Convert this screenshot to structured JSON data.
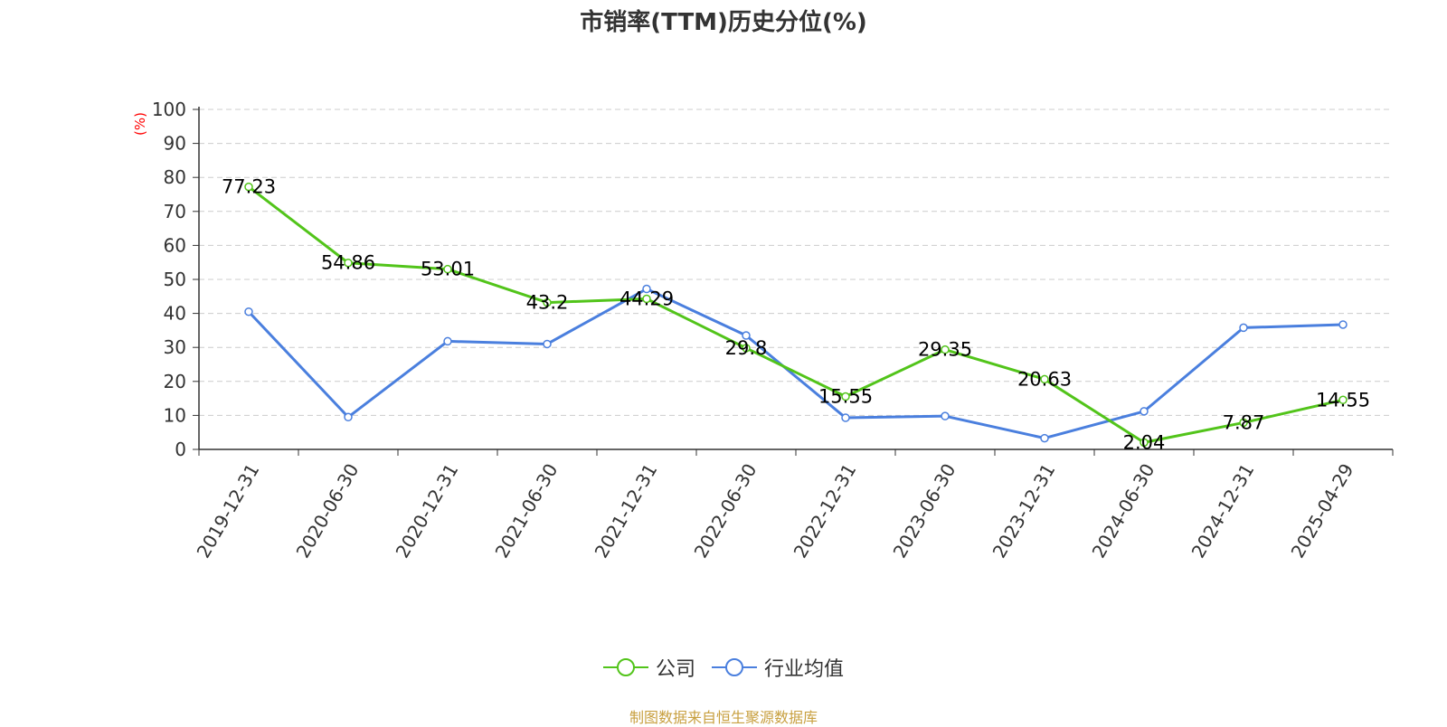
{
  "title": "市销率(TTM)历史分位(%)",
  "source": "制图数据来自恒生聚源数据库",
  "colors": {
    "company": "#52c41a",
    "industry": "#4a7fde",
    "grid": "#cccccc",
    "axis": "#333333",
    "unit": "#ff0000"
  },
  "chart_data": {
    "type": "line",
    "title": "市销率(TTM)历史分位(%)",
    "ylabel": "(%)",
    "xlabel": "",
    "ylim": [
      0,
      100
    ],
    "yticks": [
      0,
      10,
      20,
      30,
      40,
      50,
      60,
      70,
      80,
      90,
      100
    ],
    "grid": true,
    "legend_position": "bottom",
    "categories": [
      "2019-12-31",
      "2020-06-30",
      "2020-12-31",
      "2021-06-30",
      "2021-12-31",
      "2022-06-30",
      "2022-12-31",
      "2023-06-30",
      "2023-12-31",
      "2024-06-30",
      "2024-12-31",
      "2025-04-29"
    ],
    "series": [
      {
        "name": "公司",
        "color": "#52c41a",
        "show_labels": true,
        "values": [
          77.23,
          54.86,
          53.01,
          43.2,
          44.29,
          29.8,
          15.55,
          29.35,
          20.63,
          2.04,
          7.87,
          14.55
        ]
      },
      {
        "name": "行业均值",
        "color": "#4a7fde",
        "show_labels": false,
        "values": [
          40.5,
          9.5,
          31.8,
          31.0,
          47.2,
          33.5,
          9.3,
          9.8,
          3.3,
          11.2,
          35.8,
          36.7
        ]
      }
    ]
  }
}
